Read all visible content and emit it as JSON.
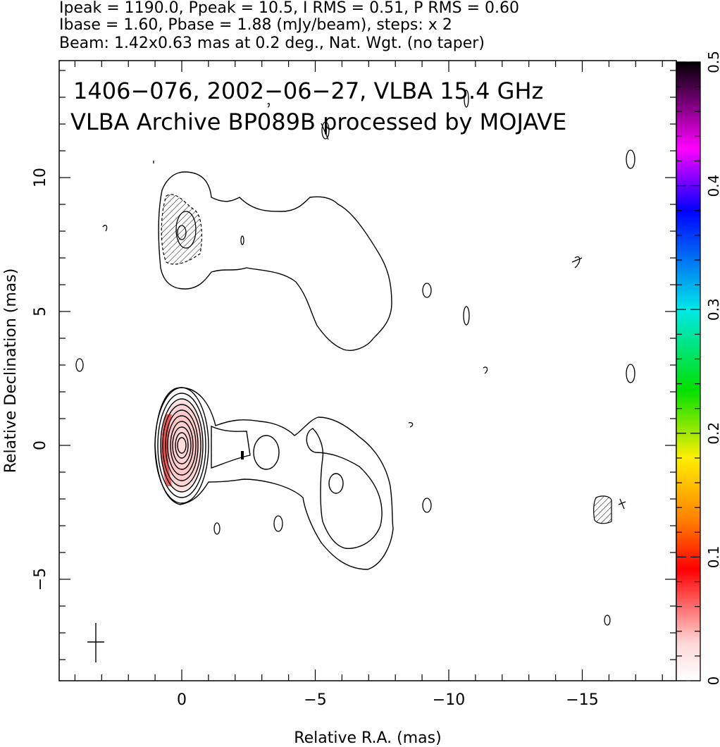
{
  "header": {
    "line1": "Ipeak = 1190.0, Ppeak = 10.5, I RMS = 0.51, P RMS = 0.60",
    "line2": "Ibase = 1.60, Pbase = 1.88 (mJy/beam), steps: x 2",
    "line3": "Beam: 1.42x0.63 mas at 0.2 deg., Nat. Wgt. (no taper)"
  },
  "chart_data": {
    "type": "contour",
    "title_line1": "1406−076, 2002−06−27, VLBA 15.4 GHz",
    "title_line2": "VLBA Archive BP089B processed by MOJAVE",
    "xlabel": "Relative R.A. (mas)",
    "ylabel": "Relative Declination (mas)",
    "xlim": [
      4.5,
      -18.5
    ],
    "ylim": [
      -8.8,
      14.5
    ],
    "x_ticks": [
      0,
      -5,
      -10,
      -15
    ],
    "x_tick_labels": [
      "0",
      "−5",
      "−10",
      "−15"
    ],
    "y_ticks": [
      -5,
      0,
      5,
      10
    ],
    "y_tick_labels": [
      "−5",
      "0",
      "5",
      "10"
    ],
    "colorbar": {
      "range": [
        0,
        0.5
      ],
      "ticks": [
        0,
        0.1,
        0.2,
        0.3,
        0.4,
        0.5
      ],
      "tick_labels": [
        "0",
        "0.1",
        "0.2",
        "0.3",
        "0.4",
        "0.5"
      ],
      "colors": [
        "#ffffff",
        "#ffc8c8",
        "#ff0000",
        "#ffd000",
        "#00e000",
        "#00e0e0",
        "#0000ff",
        "#ff00ff",
        "#000000"
      ]
    },
    "core": {
      "x": 0.0,
      "y": 0.0,
      "contour_count": 11
    },
    "features": [
      {
        "name": "northern-jet",
        "x_range": [
          1.0,
          -8.0
        ],
        "y_range": [
          3.6,
          10.3
        ]
      },
      {
        "name": "southern-jet",
        "x_range": [
          1.0,
          -8.0
        ],
        "y_range": [
          -4.5,
          2.3
        ]
      },
      {
        "name": "polarized-component-north",
        "x": -0.2,
        "y": 8.0
      },
      {
        "name": "polarized-component-south",
        "x": -15.8,
        "y": -2.3
      }
    ],
    "beam_marker": {
      "x": 3.2,
      "y": -7.3
    }
  }
}
